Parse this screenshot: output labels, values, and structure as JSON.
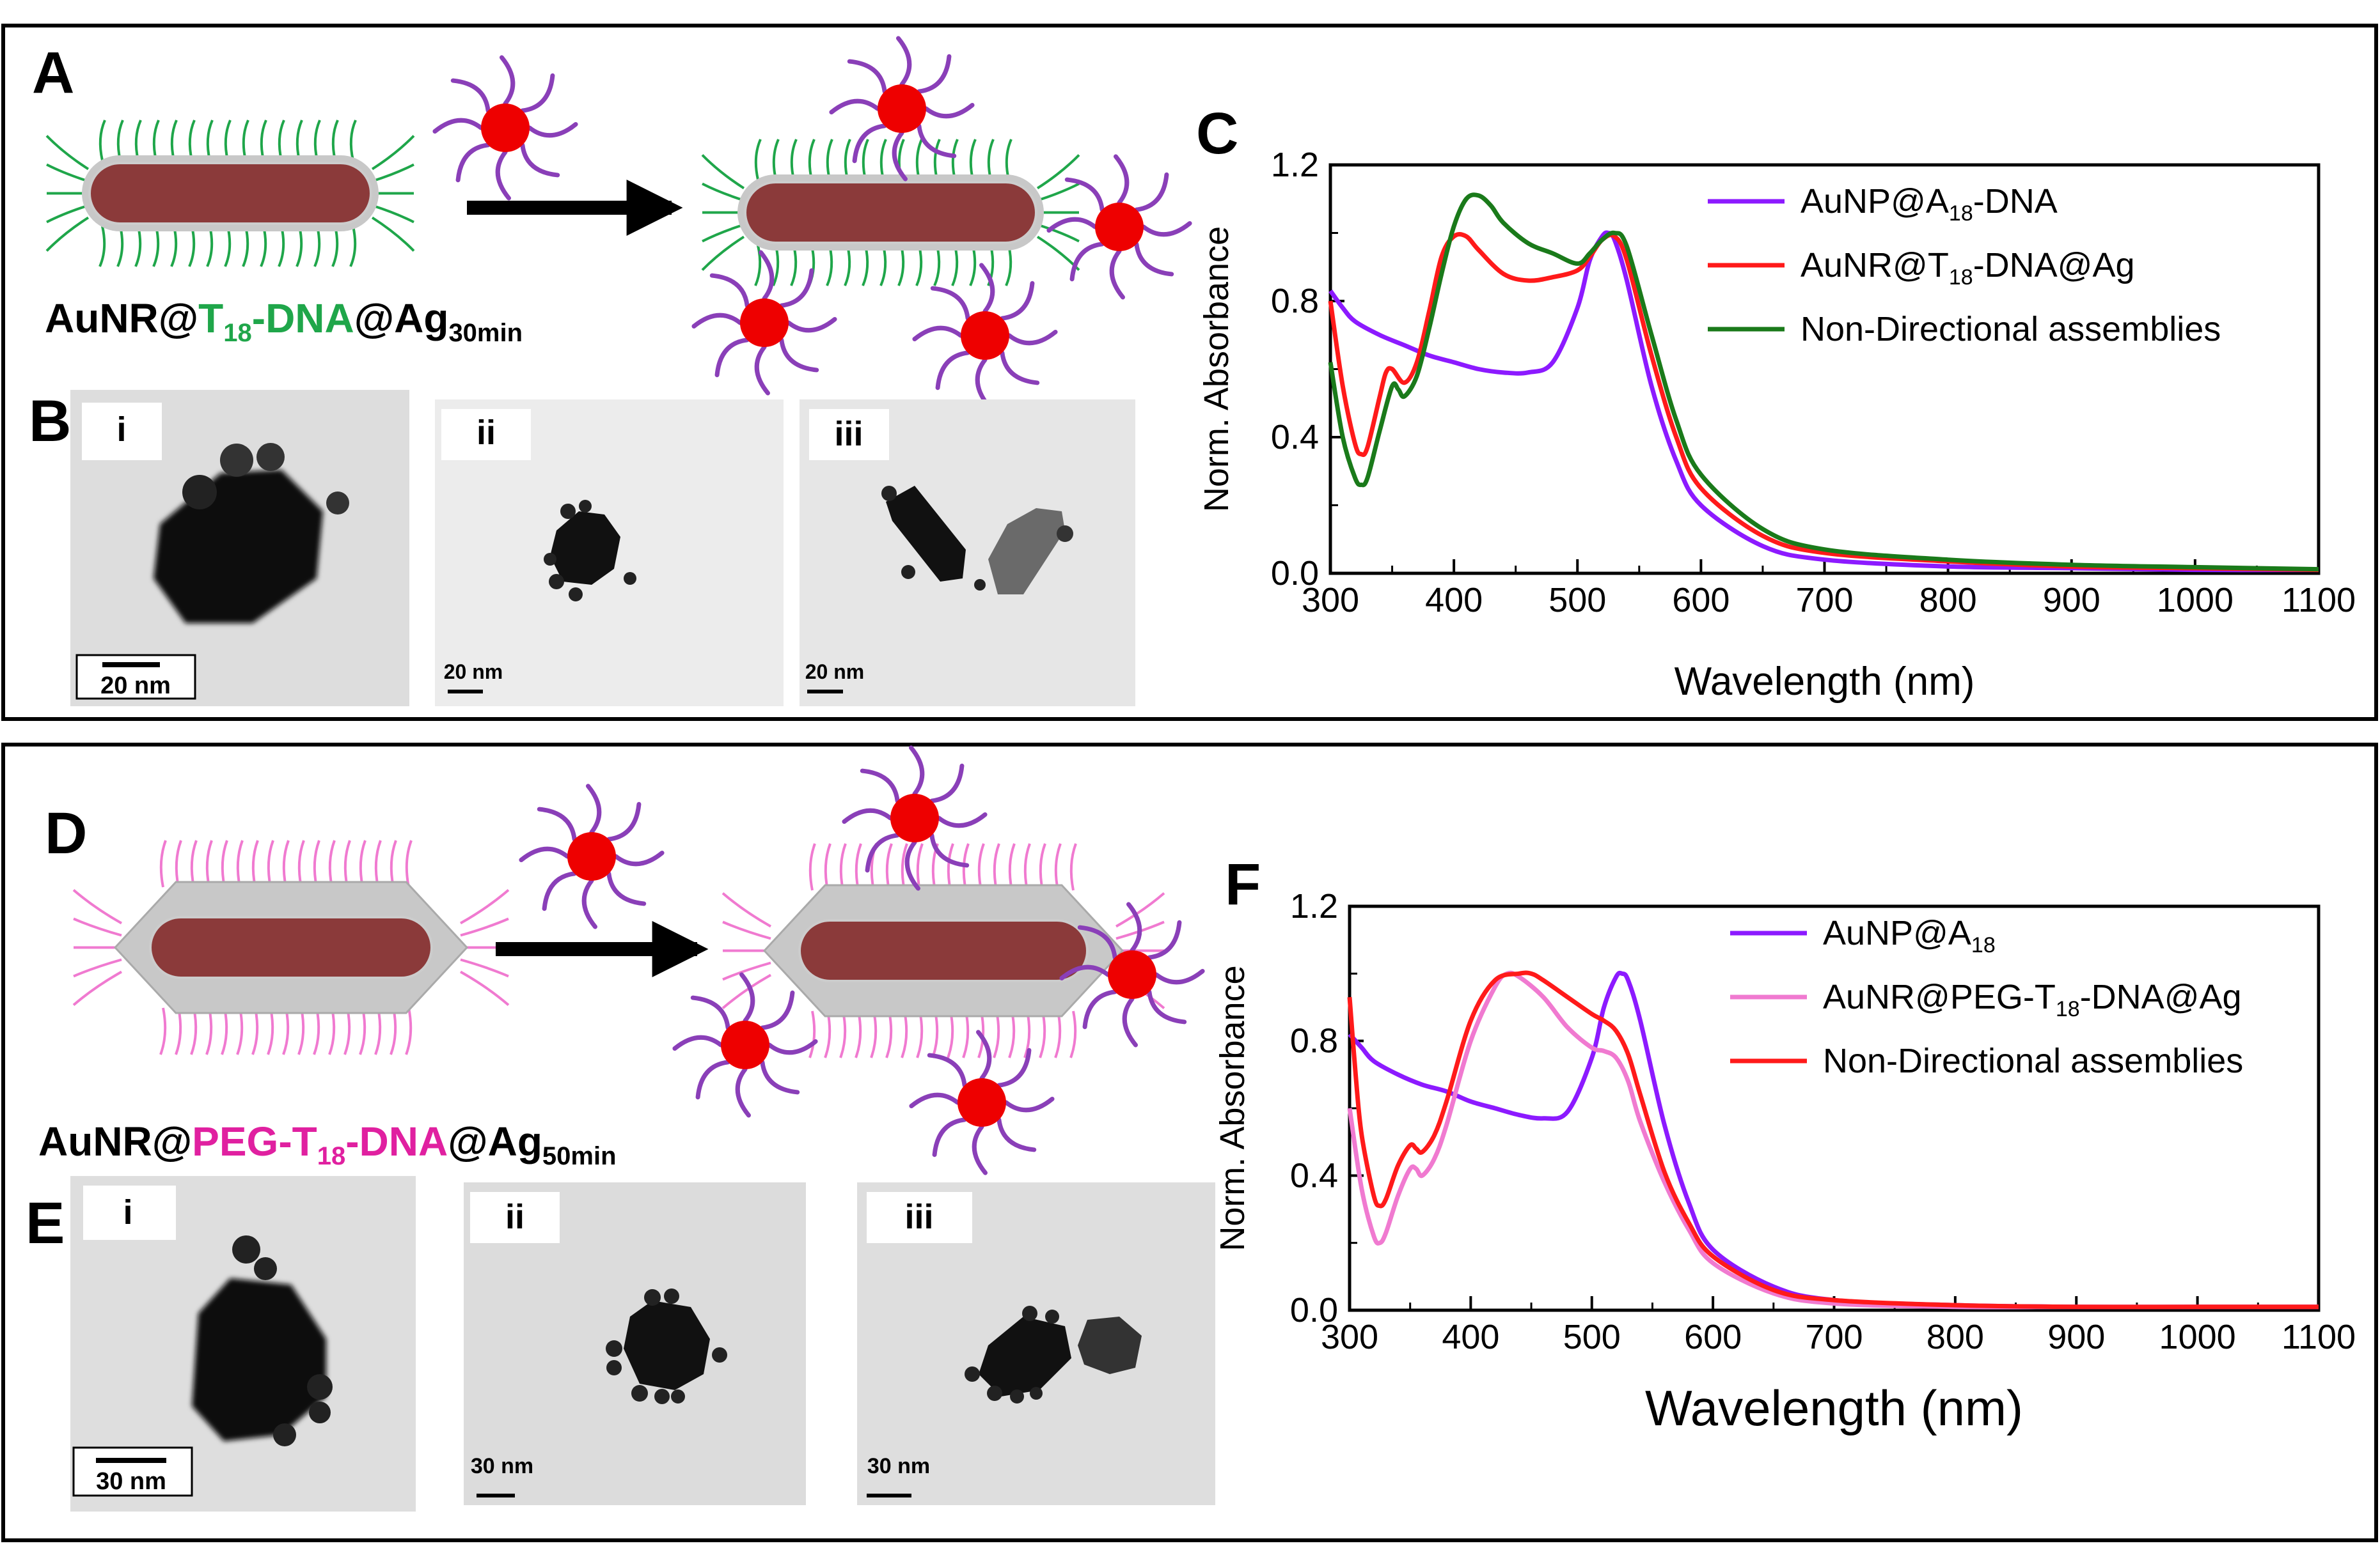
{
  "panel_labels": {
    "A": "A",
    "B": "B",
    "C": "C",
    "D": "D",
    "E": "E",
    "F": "F"
  },
  "captions": {
    "top": {
      "prefix": "AuNR@",
      "colored": "T",
      "colored_sub": "18",
      "colored_tail": "-DNA",
      "suffix": "@Ag",
      "suffix_sub": "30min",
      "color": "#1fa64a"
    },
    "bottom": {
      "prefix": "AuNR@",
      "colored": "PEG-T",
      "colored_sub": "18",
      "colored_tail": "-DNA",
      "suffix": "@Ag",
      "suffix_sub": "50min",
      "color": "#e020a0"
    }
  },
  "tem": {
    "B": [
      {
        "label": "i",
        "scale": "20 nm"
      },
      {
        "label": "ii",
        "scale": "20 nm"
      },
      {
        "label": "iii",
        "scale": "20 nm"
      }
    ],
    "E": [
      {
        "label": "i",
        "scale": "30 nm"
      },
      {
        "label": "ii",
        "scale": "30 nm"
      },
      {
        "label": "iii",
        "scale": "30 nm"
      }
    ]
  },
  "colors": {
    "rod": "#8b3a3a",
    "shell": "#c8c8c8",
    "np": "#ee0000",
    "np_strand": "#8a3fb8",
    "strand_top": "#1fa64a",
    "strand_bottom": "#f07ad0",
    "arrow": "#000000"
  },
  "chart_data": [
    {
      "id": "C",
      "type": "line",
      "title": "",
      "xlabel": "Wavelength (nm)",
      "ylabel": "Norm. Absorbance",
      "xlim": [
        300,
        1100
      ],
      "ylim": [
        0,
        1.2
      ],
      "xticks": [
        300,
        400,
        500,
        600,
        700,
        800,
        900,
        1000,
        1100
      ],
      "yticks": [
        "0.0",
        "0.4",
        "0.8",
        "1.2"
      ],
      "legend_position": "top-right",
      "series": [
        {
          "name": "AuNP@A18-DNA",
          "legend_main": "AuNP@A",
          "legend_sub": "18",
          "legend_tail": "-DNA",
          "color": "#8c1aff",
          "x": [
            300,
            310,
            320,
            340,
            360,
            380,
            400,
            420,
            440,
            460,
            480,
            500,
            510,
            520,
            525,
            530,
            540,
            560,
            580,
            600,
            650,
            700,
            800,
            900,
            1000,
            1100
          ],
          "y": [
            0.83,
            0.78,
            0.74,
            0.7,
            0.67,
            0.64,
            0.62,
            0.6,
            0.59,
            0.59,
            0.62,
            0.78,
            0.92,
            0.99,
            1.0,
            0.98,
            0.86,
            0.55,
            0.33,
            0.2,
            0.08,
            0.04,
            0.02,
            0.015,
            0.01,
            0.01
          ]
        },
        {
          "name": "AuNR@T18-DNA@Ag",
          "legend_main": "AuNR@T",
          "legend_sub": "18",
          "legend_tail": "-DNA@Ag",
          "color": "#ff1a1a",
          "x": [
            300,
            310,
            320,
            325,
            330,
            340,
            345,
            350,
            360,
            370,
            380,
            390,
            400,
            410,
            420,
            440,
            460,
            480,
            500,
            510,
            520,
            530,
            540,
            560,
            580,
            600,
            650,
            700,
            800,
            900,
            1000,
            1100
          ],
          "y": [
            0.8,
            0.55,
            0.38,
            0.35,
            0.37,
            0.52,
            0.59,
            0.6,
            0.56,
            0.62,
            0.77,
            0.93,
            0.99,
            0.99,
            0.95,
            0.88,
            0.86,
            0.87,
            0.89,
            0.93,
            0.98,
            0.99,
            0.92,
            0.64,
            0.4,
            0.25,
            0.11,
            0.06,
            0.035,
            0.02,
            0.015,
            0.01
          ]
        },
        {
          "name": "Non-Directional assemblies",
          "legend_main": "Non-Directional assemblies",
          "legend_sub": "",
          "legend_tail": "",
          "color": "#1a7a1a",
          "x": [
            300,
            310,
            320,
            325,
            330,
            340,
            350,
            355,
            360,
            370,
            380,
            390,
            400,
            410,
            420,
            430,
            440,
            460,
            480,
            500,
            510,
            520,
            530,
            540,
            560,
            580,
            600,
            650,
            700,
            800,
            900,
            1000,
            1100
          ],
          "y": [
            0.62,
            0.4,
            0.28,
            0.26,
            0.28,
            0.42,
            0.55,
            0.54,
            0.52,
            0.58,
            0.72,
            0.88,
            1.02,
            1.1,
            1.11,
            1.08,
            1.03,
            0.97,
            0.94,
            0.91,
            0.94,
            0.98,
            1.0,
            0.96,
            0.7,
            0.45,
            0.29,
            0.13,
            0.07,
            0.04,
            0.025,
            0.018,
            0.012
          ]
        }
      ]
    },
    {
      "id": "F",
      "type": "line",
      "title": "",
      "xlabel": "Wavelength (nm)",
      "ylabel": "Norm. Absorbance",
      "xlim": [
        300,
        1100
      ],
      "ylim": [
        0,
        1.2
      ],
      "xticks": [
        300,
        400,
        500,
        600,
        700,
        800,
        900,
        1000,
        1100
      ],
      "yticks": [
        "0.0",
        "0.4",
        "0.8",
        "1.2"
      ],
      "legend_position": "top-right",
      "series": [
        {
          "name": "AuNP@A18",
          "legend_main": "AuNP@A",
          "legend_sub": "18",
          "legend_tail": "",
          "color": "#8c1aff",
          "x": [
            300,
            310,
            320,
            340,
            360,
            380,
            400,
            420,
            440,
            460,
            480,
            500,
            510,
            520,
            525,
            530,
            540,
            560,
            580,
            600,
            650,
            700,
            800,
            900,
            1000,
            1100
          ],
          "y": [
            0.82,
            0.78,
            0.74,
            0.7,
            0.67,
            0.65,
            0.62,
            0.6,
            0.58,
            0.57,
            0.59,
            0.75,
            0.9,
            0.99,
            1.0,
            0.98,
            0.86,
            0.55,
            0.32,
            0.18,
            0.07,
            0.03,
            0.015,
            0.01,
            0.01,
            0.01
          ]
        },
        {
          "name": "AuNR@PEG-T18-DNA@Ag",
          "legend_main": "AuNR@PEG-T",
          "legend_sub": "18",
          "legend_tail": "-DNA@Ag",
          "color": "#f07ad0",
          "x": [
            300,
            310,
            320,
            325,
            330,
            340,
            350,
            355,
            360,
            370,
            380,
            400,
            420,
            430,
            440,
            460,
            480,
            500,
            510,
            520,
            530,
            540,
            560,
            580,
            600,
            650,
            700,
            800,
            900,
            1000,
            1100
          ],
          "y": [
            0.6,
            0.36,
            0.22,
            0.2,
            0.23,
            0.34,
            0.42,
            0.42,
            0.4,
            0.45,
            0.55,
            0.8,
            0.96,
            1.0,
            0.99,
            0.93,
            0.84,
            0.78,
            0.77,
            0.75,
            0.68,
            0.56,
            0.38,
            0.24,
            0.14,
            0.05,
            0.02,
            0.01,
            0.01,
            0.01,
            0.01
          ]
        },
        {
          "name": "Non-Directional assemblies",
          "legend_main": "Non-Directional assemblies",
          "legend_sub": "",
          "legend_tail": "",
          "color": "#ff1a1a",
          "x": [
            300,
            305,
            310,
            320,
            325,
            330,
            340,
            350,
            355,
            360,
            370,
            380,
            400,
            420,
            440,
            450,
            460,
            480,
            500,
            510,
            520,
            530,
            540,
            560,
            580,
            600,
            650,
            700,
            800,
            900,
            1000,
            1100
          ],
          "y": [
            0.93,
            0.7,
            0.52,
            0.34,
            0.31,
            0.33,
            0.43,
            0.49,
            0.48,
            0.47,
            0.52,
            0.62,
            0.86,
            0.98,
            1.0,
            1.0,
            0.98,
            0.93,
            0.88,
            0.86,
            0.83,
            0.76,
            0.64,
            0.41,
            0.26,
            0.16,
            0.06,
            0.03,
            0.015,
            0.01,
            0.01,
            0.01
          ]
        }
      ]
    }
  ]
}
